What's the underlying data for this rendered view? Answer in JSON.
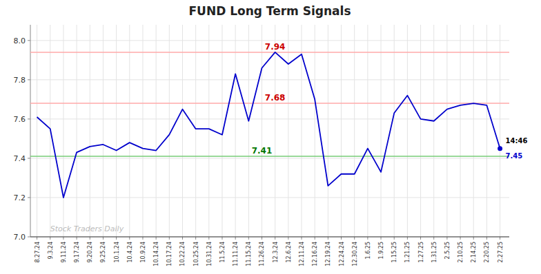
{
  "chart_data": {
    "type": "line",
    "title": "FUND Long Term Signals",
    "categories": [
      "8.27.24",
      "9.3.24",
      "9.11.24",
      "9.17.24",
      "9.20.24",
      "9.25.24",
      "10.1.24",
      "10.4.24",
      "10.9.24",
      "10.14.24",
      "10.17.24",
      "10.22.24",
      "10.25.24",
      "10.31.24",
      "11.5.24",
      "11.11.24",
      "11.15.24",
      "11.26.24",
      "12.3.24",
      "12.6.24",
      "12.11.24",
      "12.16.24",
      "12.19.24",
      "12.24.24",
      "12.30.24",
      "1.6.25",
      "1.9.25",
      "1.15.25",
      "1.21.25",
      "1.27.25",
      "1.31.25",
      "2.5.25",
      "2.10.25",
      "2.14.25",
      "2.20.25",
      "2.27.25"
    ],
    "values": [
      7.61,
      7.55,
      7.2,
      7.43,
      7.46,
      7.47,
      7.44,
      7.48,
      7.45,
      7.44,
      7.52,
      7.65,
      7.55,
      7.55,
      7.52,
      7.83,
      7.59,
      7.86,
      7.94,
      7.88,
      7.93,
      7.7,
      7.26,
      7.32,
      7.32,
      7.45,
      7.33,
      7.63,
      7.72,
      7.6,
      7.59,
      7.65,
      7.67,
      7.68,
      7.67,
      7.45
    ],
    "color": "#0000cc",
    "ylim": [
      7.0,
      8.08
    ],
    "yticks": [
      {
        "value": 7.0,
        "label": "7.0"
      },
      7.2,
      7.4,
      7.6,
      7.8,
      {
        "value": 8.0,
        "label": "8.0"
      }
    ],
    "grid": true,
    "hlines": [
      {
        "value": 7.94,
        "label": "7.94",
        "at": "12.3.24",
        "color": "#ffaaaa",
        "label_color": "#cc0000"
      },
      {
        "value": 7.68,
        "label": "7.68",
        "at": "12.3.24",
        "color": "#ffaaaa",
        "label_color": "#cc0000"
      },
      {
        "value": 7.41,
        "label": "7.41",
        "at": "11.26.24",
        "color": "#77cc77",
        "label_color": "#007700"
      }
    ],
    "last_time_label": "14:46",
    "last_value_label": "7.45",
    "watermark": "Stock Traders Daily"
  }
}
